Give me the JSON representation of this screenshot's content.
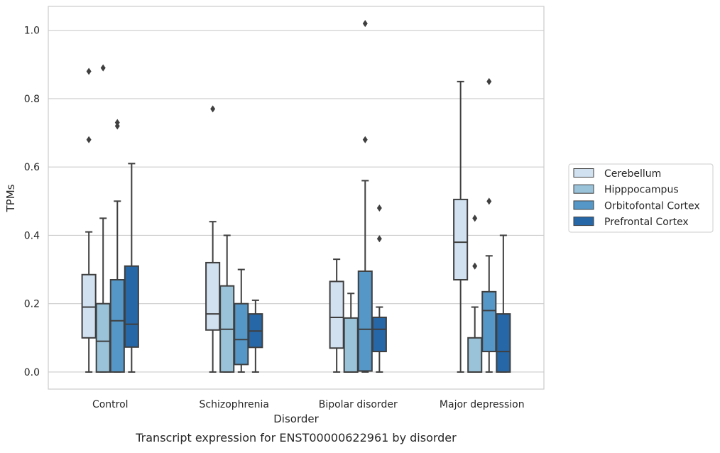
{
  "chart_data": {
    "type": "boxplot",
    "title": "Transcript expression for ENST00000622961 by disorder",
    "xlabel": "Disorder",
    "ylabel": "TPMs",
    "ylim": [
      -0.05,
      1.07
    ],
    "yticks": [
      "0.0",
      "0.2",
      "0.4",
      "0.6",
      "0.8",
      "1.0"
    ],
    "categories": [
      "Control",
      "Schizophrenia",
      "Bipolar disorder",
      "Major depression"
    ],
    "grid": "horizontal",
    "legend_position": "right",
    "series": [
      {
        "name": "Cerebellum",
        "color": "#d1e1f0",
        "boxes": [
          {
            "whisker_low": 0.0,
            "q1": 0.1,
            "median": 0.19,
            "q3": 0.285,
            "whisker_high": 0.41,
            "outliers": [
              0.88,
              0.68
            ]
          },
          {
            "whisker_low": 0.0,
            "q1": 0.123,
            "median": 0.17,
            "q3": 0.32,
            "whisker_high": 0.44,
            "outliers": [
              0.77
            ]
          },
          {
            "whisker_low": 0.0,
            "q1": 0.07,
            "median": 0.16,
            "q3": 0.265,
            "whisker_high": 0.33,
            "outliers": []
          },
          {
            "whisker_low": 0.0,
            "q1": 0.27,
            "median": 0.38,
            "q3": 0.505,
            "whisker_high": 0.85,
            "outliers": []
          }
        ]
      },
      {
        "name": "Hipppocampus",
        "color": "#9ac3da",
        "boxes": [
          {
            "whisker_low": 0.0,
            "q1": 0.0,
            "median": 0.09,
            "q3": 0.2,
            "whisker_high": 0.45,
            "outliers": [
              0.89
            ]
          },
          {
            "whisker_low": 0.0,
            "q1": 0.0,
            "median": 0.125,
            "q3": 0.252,
            "whisker_high": 0.4,
            "outliers": []
          },
          {
            "whisker_low": 0.0,
            "q1": 0.0,
            "median": 0.0,
            "q3": 0.158,
            "whisker_high": 0.23,
            "outliers": []
          },
          {
            "whisker_low": 0.0,
            "q1": 0.0,
            "median": 0.0,
            "q3": 0.1,
            "whisker_high": 0.19,
            "outliers": [
              0.45,
              0.31
            ]
          }
        ]
      },
      {
        "name": "Orbitofontal Cortex",
        "color": "#5598c8",
        "boxes": [
          {
            "whisker_low": 0.0,
            "q1": 0.0,
            "median": 0.15,
            "q3": 0.27,
            "whisker_high": 0.5,
            "outliers": [
              0.73,
              0.72
            ]
          },
          {
            "whisker_low": 0.0,
            "q1": 0.022,
            "median": 0.095,
            "q3": 0.2,
            "whisker_high": 0.3,
            "outliers": []
          },
          {
            "whisker_low": 0.0,
            "q1": 0.003,
            "median": 0.125,
            "q3": 0.295,
            "whisker_high": 0.56,
            "outliers": [
              1.02,
              0.68
            ]
          },
          {
            "whisker_low": 0.0,
            "q1": 0.06,
            "median": 0.18,
            "q3": 0.235,
            "whisker_high": 0.34,
            "outliers": [
              0.85,
              0.5
            ]
          }
        ]
      },
      {
        "name": "Prefrontal Cortex",
        "color": "#2667a8",
        "boxes": [
          {
            "whisker_low": 0.0,
            "q1": 0.073,
            "median": 0.14,
            "q3": 0.31,
            "whisker_high": 0.61,
            "outliers": []
          },
          {
            "whisker_low": 0.0,
            "q1": 0.072,
            "median": 0.12,
            "q3": 0.17,
            "whisker_high": 0.21,
            "outliers": []
          },
          {
            "whisker_low": 0.0,
            "q1": 0.06,
            "median": 0.125,
            "q3": 0.16,
            "whisker_high": 0.19,
            "outliers": [
              0.48,
              0.39
            ]
          },
          {
            "whisker_low": 0.0,
            "q1": 0.0,
            "median": 0.06,
            "q3": 0.17,
            "whisker_high": 0.4,
            "outliers": []
          }
        ]
      }
    ]
  }
}
